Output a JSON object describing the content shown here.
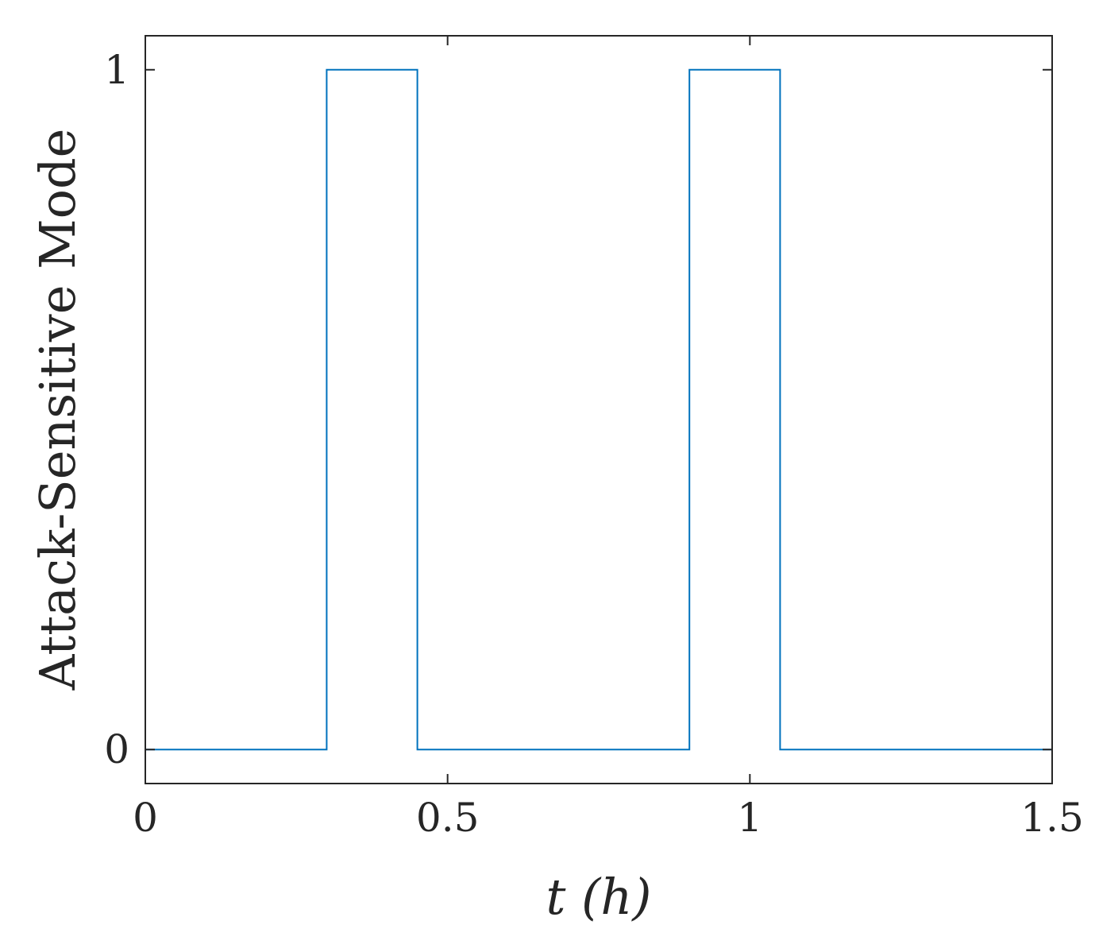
{
  "chart_data": {
    "type": "line",
    "line_style": "step",
    "xlabel": "t (h)",
    "ylabel": "Attack-Sensitive Mode",
    "xlim": [
      0,
      1.5
    ],
    "ylim": [
      -0.05,
      1.05
    ],
    "x_ticks": [
      0,
      0.5,
      1,
      1.5
    ],
    "x_tick_labels": [
      "0",
      "0.5",
      "1",
      "1.5"
    ],
    "y_ticks": [
      0,
      1
    ],
    "y_tick_labels": [
      "0",
      "1"
    ],
    "grid": false,
    "box": true,
    "series": [
      {
        "color": "#0072BD",
        "x": [
          0,
          0.3,
          0.3,
          0.45,
          0.45,
          0.9,
          0.9,
          1.05,
          1.05,
          1.5
        ],
        "y": [
          0,
          0,
          1,
          1,
          0,
          0,
          1,
          1,
          0,
          0
        ]
      }
    ]
  }
}
